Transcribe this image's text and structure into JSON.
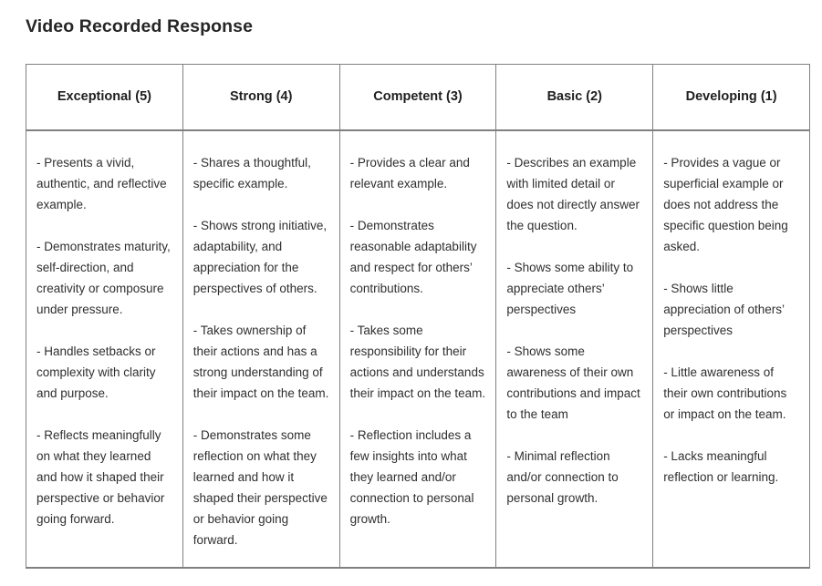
{
  "page_title": "Video Recorded Response",
  "colors": {
    "background": "#ffffff",
    "border": "#808080",
    "header_text": "#1f1f1f",
    "body_text": "#2f2f2f"
  },
  "table": {
    "columns": [
      {
        "header": "Exceptional (5)",
        "bullets": [
          "- Presents a vivid, authentic, and reflective example.",
          "- Demonstrates maturity, self-direction, and creativity or composure under pressure.",
          "- Handles setbacks or complexity with clarity and purpose.",
          "- Reflects meaningfully on what they learned and how it shaped their perspective or behavior going forward."
        ]
      },
      {
        "header": "Strong (4)",
        "bullets": [
          "- Shares a thoughtful, specific example.",
          "- Shows strong initiative, adaptability, and appreciation for the perspectives of others.",
          "- Takes ownership of their actions and has a strong understanding of their impact on the team.",
          "- Demonstrates some reflection on what they learned and how it shaped their perspective or behavior going forward."
        ]
      },
      {
        "header": "Competent (3)",
        "bullets": [
          "- Provides a clear and relevant example.",
          "- Demonstrates reasonable adaptability and respect for others’ contributions.",
          "- Takes some responsibility for their actions and understands their impact on the team.",
          "- Reflection includes a few insights into what they learned and/or connection to personal growth."
        ]
      },
      {
        "header": "Basic (2)",
        "bullets": [
          "- Describes an example with limited detail or does not directly answer the question.",
          "- Shows some ability to appreciate others’ perspectives",
          "- Shows some awareness of their own contributions and impact to the team",
          "- Minimal reflection and/or connection to personal growth."
        ]
      },
      {
        "header": "Developing (1)",
        "bullets": [
          "- Provides a vague or superficial example or does not address the specific question being asked.",
          "- Shows little appreciation of others’ perspectives",
          "- Little awareness of their own contributions or impact on the team.",
          "- Lacks meaningful reflection or learning."
        ]
      }
    ]
  }
}
